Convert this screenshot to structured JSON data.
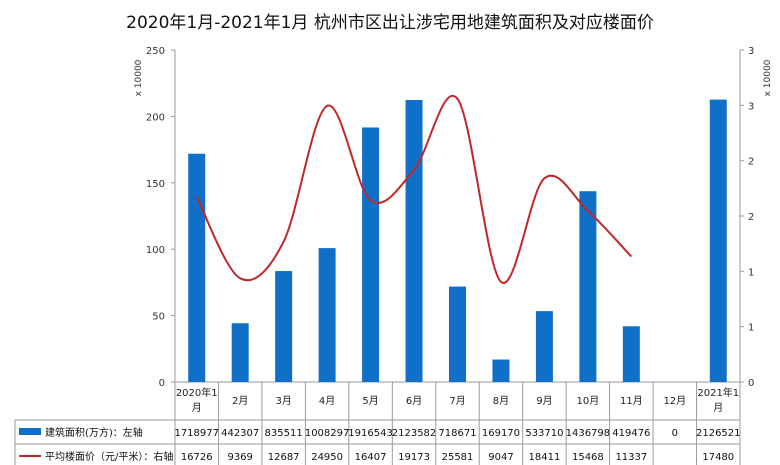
{
  "chart_data": {
    "type": "bar",
    "title": "2020年1月-2021年1月 杭州市区出让涉宅用地建筑面积及对应楼面价",
    "categories": [
      [
        "2020年1",
        "月"
      ],
      [
        "2月"
      ],
      [
        "3月"
      ],
      [
        "4月"
      ],
      [
        "5月"
      ],
      [
        "6月"
      ],
      [
        "7月"
      ],
      [
        "8月"
      ],
      [
        "9月"
      ],
      [
        "10月"
      ],
      [
        "11月"
      ],
      [
        "12月"
      ],
      [
        "2021年1",
        "月"
      ]
    ],
    "left_axis": {
      "unit": "x 10000",
      "ylim": [
        0,
        250
      ],
      "ticks": [
        "0",
        "50",
        "100",
        "150",
        "200",
        "250"
      ]
    },
    "right_axis": {
      "unit": "x 10000",
      "ylim": [
        0,
        3
      ],
      "ticks": [
        "0",
        "1",
        "1",
        "2",
        "2",
        "3",
        "3"
      ]
    },
    "grid": false,
    "series": [
      {
        "name": "建筑面积(万方)：左轴",
        "type": "bar",
        "color": "#1070c8",
        "values": [
          1718977,
          442307,
          835511,
          1008297,
          1916543,
          2123582,
          718671,
          169170,
          533710,
          1436798,
          419476,
          0,
          2126521
        ],
        "labels": [
          "1718977",
          "442307",
          "835511",
          "1008297",
          "1916543",
          "2123582",
          "718671",
          "169170",
          "533710",
          "1436798",
          "419476",
          "0",
          "2126521"
        ]
      },
      {
        "name": "平均楼面价（元/平米）：右轴",
        "type": "line",
        "color": "#c0282a",
        "values": [
          16726,
          9369,
          12687,
          24950,
          16407,
          19173,
          25581,
          9047,
          18411,
          15468,
          11337,
          null,
          17480
        ],
        "labels": [
          "16726",
          "9369",
          "12687",
          "24950",
          "16407",
          "19173",
          "25581",
          "9047",
          "18411",
          "15468",
          "11337",
          "",
          "17480"
        ]
      }
    ]
  }
}
